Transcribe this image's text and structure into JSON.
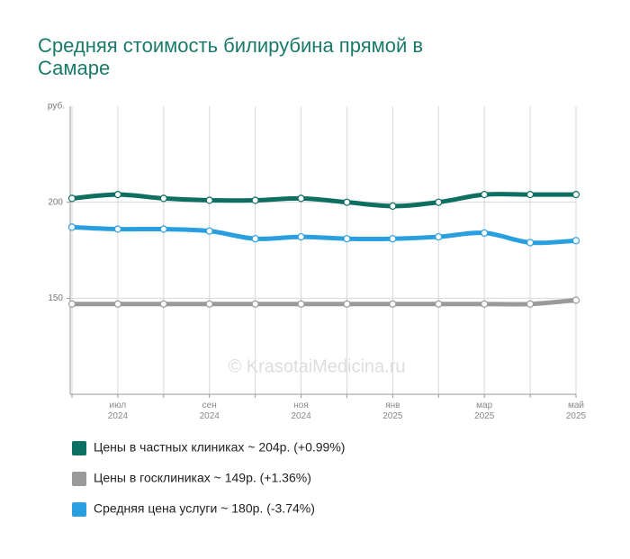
{
  "chart_data": {
    "type": "line",
    "title": "Средняя стоимость билирубина прямой в Самаре",
    "y_label": "руб.",
    "watermark": "© KrasotaiMedicina.ru",
    "categories": [
      null,
      [
        "июл",
        "2024"
      ],
      null,
      [
        "сен",
        "2024"
      ],
      null,
      [
        "ноя",
        "2024"
      ],
      null,
      [
        "янв",
        "2025"
      ],
      null,
      [
        "мар",
        "2025"
      ],
      null,
      [
        "май",
        "2025"
      ]
    ],
    "series": [
      {
        "name": "Цены в частных клиниках ~ 204р. (+0.99%)",
        "color": "#0d6e62",
        "values": [
          202,
          204,
          202,
          201,
          201,
          202,
          200,
          198,
          200,
          204,
          204,
          204
        ]
      },
      {
        "name": "Цены в госклиниках ~ 149р. (+1.36%)",
        "color": "#9a9a9a",
        "values": [
          147,
          147,
          147,
          147,
          147,
          147,
          147,
          147,
          147,
          147,
          147,
          149
        ]
      },
      {
        "name": "Средняя цена услуги ~ 180р. (-3.74%)",
        "color": "#2a9fe0",
        "values": [
          187,
          186,
          186,
          185,
          181,
          182,
          181,
          181,
          182,
          184,
          179,
          180
        ]
      }
    ],
    "ylim": [
      100,
      250
    ],
    "yticks": [
      150,
      200
    ],
    "grid": true
  }
}
